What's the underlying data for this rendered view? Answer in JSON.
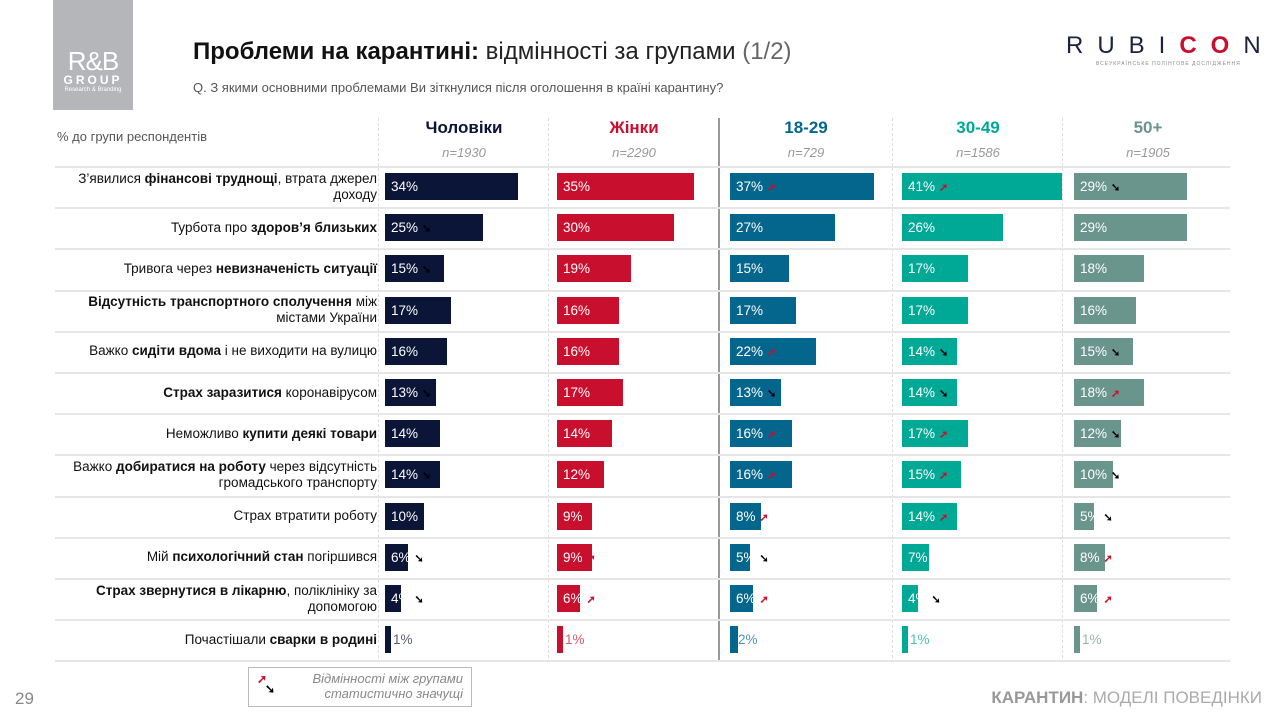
{
  "logo": {
    "line1": "R&B",
    "line2": "GROUP",
    "line3": "Research & Branding"
  },
  "title": {
    "bold": "Проблеми на карантині:",
    "normal": "відмінності за групами",
    "page": "(1/2)"
  },
  "question": "Q. З якими основними проблемами Ви зіткнулися після оголошення в країні карантину?",
  "brand": {
    "pre": "RUBI",
    "red": "CO",
    "post": "N",
    "sub": "ВСЕУКРАЇНСЬКЕ ПОЛІНГОВЕ ДОСЛІДЖЕННЯ"
  },
  "table_label": "% до групи респондентів",
  "columns": [
    {
      "name": "Чоловіки",
      "n": "n=1930",
      "color": "#0a1538",
      "title_color": "#0a1538"
    },
    {
      "name": "Жінки",
      "n": "n=2290",
      "color": "#c8102e",
      "title_color": "#c8102e"
    },
    {
      "name": "18-29",
      "n": "n=729",
      "color": "#05668d",
      "title_color": "#05668d"
    },
    {
      "name": "30-49",
      "n": "n=1586",
      "color": "#00a896",
      "title_color": "#00a896"
    },
    {
      "name": "50+",
      "n": "n=1905",
      "color": "#6a958d",
      "title_color": "#6a958d"
    }
  ],
  "rows": [
    {
      "pre": "З’явилися ",
      "bold": "фінансові труднощі",
      "post": ", втрата джерел доходу",
      "values": [
        34,
        35,
        37,
        41,
        29
      ],
      "arrows": [
        "",
        "",
        "up",
        "up",
        "down"
      ]
    },
    {
      "pre": "Турбота про ",
      "bold": "здоров’я близьких",
      "post": "",
      "values": [
        25,
        30,
        27,
        26,
        29
      ],
      "arrows": [
        "down",
        "up",
        "",
        "",
        ""
      ]
    },
    {
      "pre": "Тривога через ",
      "bold": "невизначеність ситуації",
      "post": "",
      "values": [
        15,
        19,
        15,
        17,
        18
      ],
      "arrows": [
        "down",
        "up",
        "",
        "",
        ""
      ]
    },
    {
      "pre": "",
      "bold": "Відсутність транспортного сполучення",
      "post": " між містами України",
      "values": [
        17,
        16,
        17,
        17,
        16
      ],
      "arrows": [
        "",
        "",
        "",
        "",
        ""
      ]
    },
    {
      "pre": "Важко ",
      "bold": "сидіти вдома",
      "post": " і не виходити на вулицю",
      "values": [
        16,
        16,
        22,
        14,
        15
      ],
      "arrows": [
        "",
        "",
        "up",
        "down",
        "down"
      ]
    },
    {
      "pre": "",
      "bold": "Страх заразитися",
      "post": " коронавірусом",
      "values": [
        13,
        17,
        13,
        14,
        18
      ],
      "arrows": [
        "down",
        "up",
        "down",
        "down",
        "up"
      ]
    },
    {
      "pre": "Неможливо ",
      "bold": "купити деякі товари",
      "post": "",
      "values": [
        14,
        14,
        16,
        17,
        12
      ],
      "arrows": [
        "",
        "",
        "up",
        "up",
        "down"
      ]
    },
    {
      "pre": "Важко ",
      "bold": "добиратися на роботу",
      "post": " через відсутність громадського транспорту",
      "values": [
        14,
        12,
        16,
        15,
        10
      ],
      "arrows": [
        "down",
        "up",
        "up",
        "up",
        "down"
      ]
    },
    {
      "pre": "Страх втратити роботу",
      "bold": "",
      "post": "",
      "values": [
        10,
        9,
        8,
        14,
        5
      ],
      "arrows": [
        "",
        "",
        "up",
        "up",
        "down"
      ]
    },
    {
      "pre": "Мій ",
      "bold": "психологічний стан",
      "post": " погіршився",
      "values": [
        6,
        9,
        5,
        7,
        8
      ],
      "arrows": [
        "down",
        "up",
        "down",
        "",
        "up"
      ]
    },
    {
      "pre": "",
      "bold": "Страх звернутися в лікарню",
      "post": ", поліклініку за допомогою",
      "values": [
        4,
        6,
        6,
        4,
        6
      ],
      "arrows": [
        "down",
        "up",
        "up",
        "down",
        "up"
      ]
    },
    {
      "pre": "Почастішали ",
      "bold": "сварки в родині",
      "post": "",
      "values": [
        1,
        1,
        2,
        1,
        1
      ],
      "arrows": [
        "",
        "",
        "",
        "",
        ""
      ]
    }
  ],
  "legend": {
    "line1": "Відмінності між групами",
    "line2": "статистично значущі",
    "up_color": "#c8102e",
    "down_color": "#000000"
  },
  "page_number": "29",
  "footer": {
    "bold": "КАРАНТИН",
    "rest": ": МОДЕЛІ ПОВЕДІНКИ"
  }
}
